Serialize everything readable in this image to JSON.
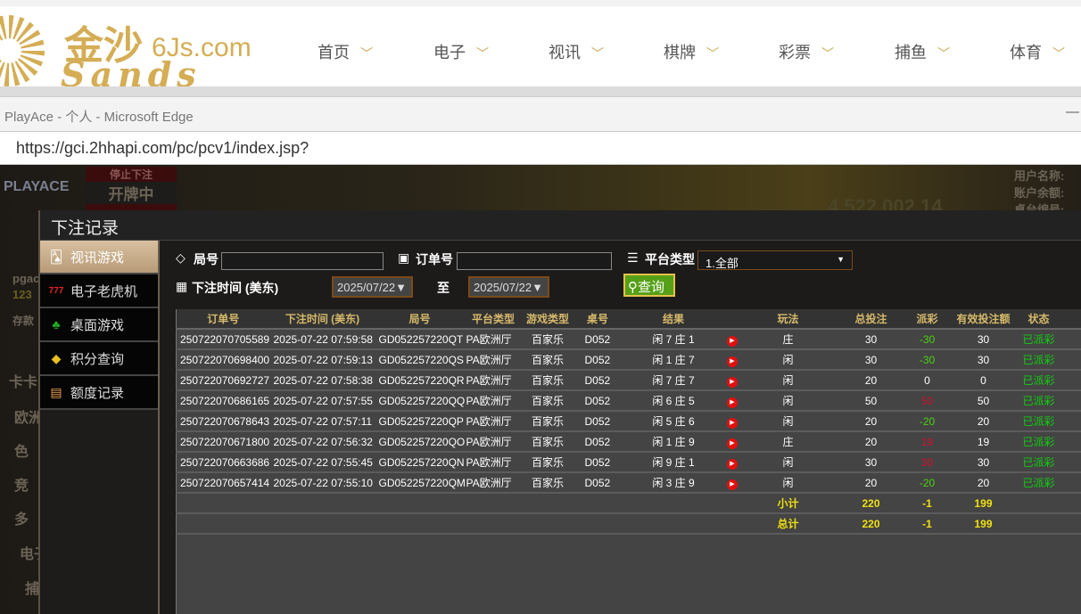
{
  "site": {
    "logo_cn": "金沙",
    "logo_domain": "6Js.com",
    "logo_en": "Sands",
    "nav": [
      "首页",
      "电子",
      "视讯",
      "棋牌",
      "彩票",
      "捕鱼",
      "体育"
    ]
  },
  "browser": {
    "title": "PlayAce - 个人 - Microsoft Edge",
    "url": "https://gci.2hhapi.com/pc/pcv1/index.jsp?"
  },
  "game_bg": {
    "brand": "PLAYACE",
    "stop_bet": "停止下注",
    "dealing": "开牌中",
    "user": "pgac",
    "balance": "123",
    "deposit": "存款",
    "jackpot": "4,522,002.14",
    "labels": [
      "用户名称:",
      "账户余额:",
      "桌台编号:"
    ],
    "side_labels": [
      "卡卡",
      "欧洲",
      "色",
      "竞",
      "多",
      "电子",
      "捕"
    ]
  },
  "modal": {
    "title": "下注记录",
    "sidebar": [
      {
        "label": "视讯游戏",
        "icon": "cards-icon",
        "active": true
      },
      {
        "label": "电子老虎机",
        "icon": "slot-777-icon"
      },
      {
        "label": "桌面游戏",
        "icon": "chips-icon"
      },
      {
        "label": "积分查询",
        "icon": "diamond-icon"
      },
      {
        "label": "额度记录",
        "icon": "document-icon"
      }
    ],
    "filters": {
      "round_label": "局号",
      "round_value": "",
      "order_label": "订单号",
      "order_value": "",
      "platform_label": "平台类型",
      "platform_value": "1.全部",
      "time_label": "下注时间 (美东)",
      "date_from": "2025/07/22",
      "to_label": "至",
      "date_to": "2025/07/22",
      "query_label": "查询"
    },
    "table": {
      "headers": [
        "订单号",
        "下注时间 (美东)",
        "局号",
        "平台类型",
        "游戏类型",
        "桌号",
        "结果",
        "",
        "玩法",
        "总投注",
        "派彩",
        "有效投注额",
        "状态",
        ""
      ],
      "rows": [
        [
          "250722070705589",
          "2025-07-22 07:59:58",
          "GD052257220QT",
          "PA欧洲厅",
          "百家乐",
          "D052",
          "闲 7 庄 1",
          "庄",
          "30",
          "-30",
          "30",
          "已派彩"
        ],
        [
          "250722070698400",
          "2025-07-22 07:59:13",
          "GD052257220QS",
          "PA欧洲厅",
          "百家乐",
          "D052",
          "闲 1 庄 7",
          "闲",
          "30",
          "-30",
          "30",
          "已派彩"
        ],
        [
          "250722070692727",
          "2025-07-22 07:58:38",
          "GD052257220QR",
          "PA欧洲厅",
          "百家乐",
          "D052",
          "闲 7 庄 7",
          "闲",
          "20",
          "0",
          "0",
          "已派彩"
        ],
        [
          "250722070686165",
          "2025-07-22 07:57:55",
          "GD052257220QQ",
          "PA欧洲厅",
          "百家乐",
          "D052",
          "闲 6 庄 5",
          "闲",
          "50",
          "50",
          "50",
          "已派彩"
        ],
        [
          "250722070678643",
          "2025-07-22 07:57:11",
          "GD052257220QP",
          "PA欧洲厅",
          "百家乐",
          "D052",
          "闲 5 庄 6",
          "闲",
          "20",
          "-20",
          "20",
          "已派彩"
        ],
        [
          "250722070671800",
          "2025-07-22 07:56:32",
          "GD052257220QO",
          "PA欧洲厅",
          "百家乐",
          "D052",
          "闲 1 庄 9",
          "庄",
          "20",
          "19",
          "19",
          "已派彩"
        ],
        [
          "250722070663686",
          "2025-07-22 07:55:45",
          "GD052257220QN",
          "PA欧洲厅",
          "百家乐",
          "D052",
          "闲 9 庄 1",
          "闲",
          "30",
          "30",
          "30",
          "已派彩"
        ],
        [
          "250722070657414",
          "2025-07-22 07:55:10",
          "GD052257220QM",
          "PA欧洲厅",
          "百家乐",
          "D052",
          "闲 3 庄 9",
          "闲",
          "20",
          "-20",
          "20",
          "已派彩"
        ]
      ],
      "subtotal": {
        "label": "小计",
        "total_bet": "220",
        "payout": "-1",
        "valid_bet": "199"
      },
      "total": {
        "label": "总计",
        "total_bet": "220",
        "payout": "-1",
        "valid_bet": "199"
      }
    },
    "colors": {
      "negative_payout": "#4cd010",
      "positive_payout": "#d01030",
      "status": "#10d010",
      "accent_gold": "#d6b96a",
      "query_green": "#56a018"
    }
  }
}
